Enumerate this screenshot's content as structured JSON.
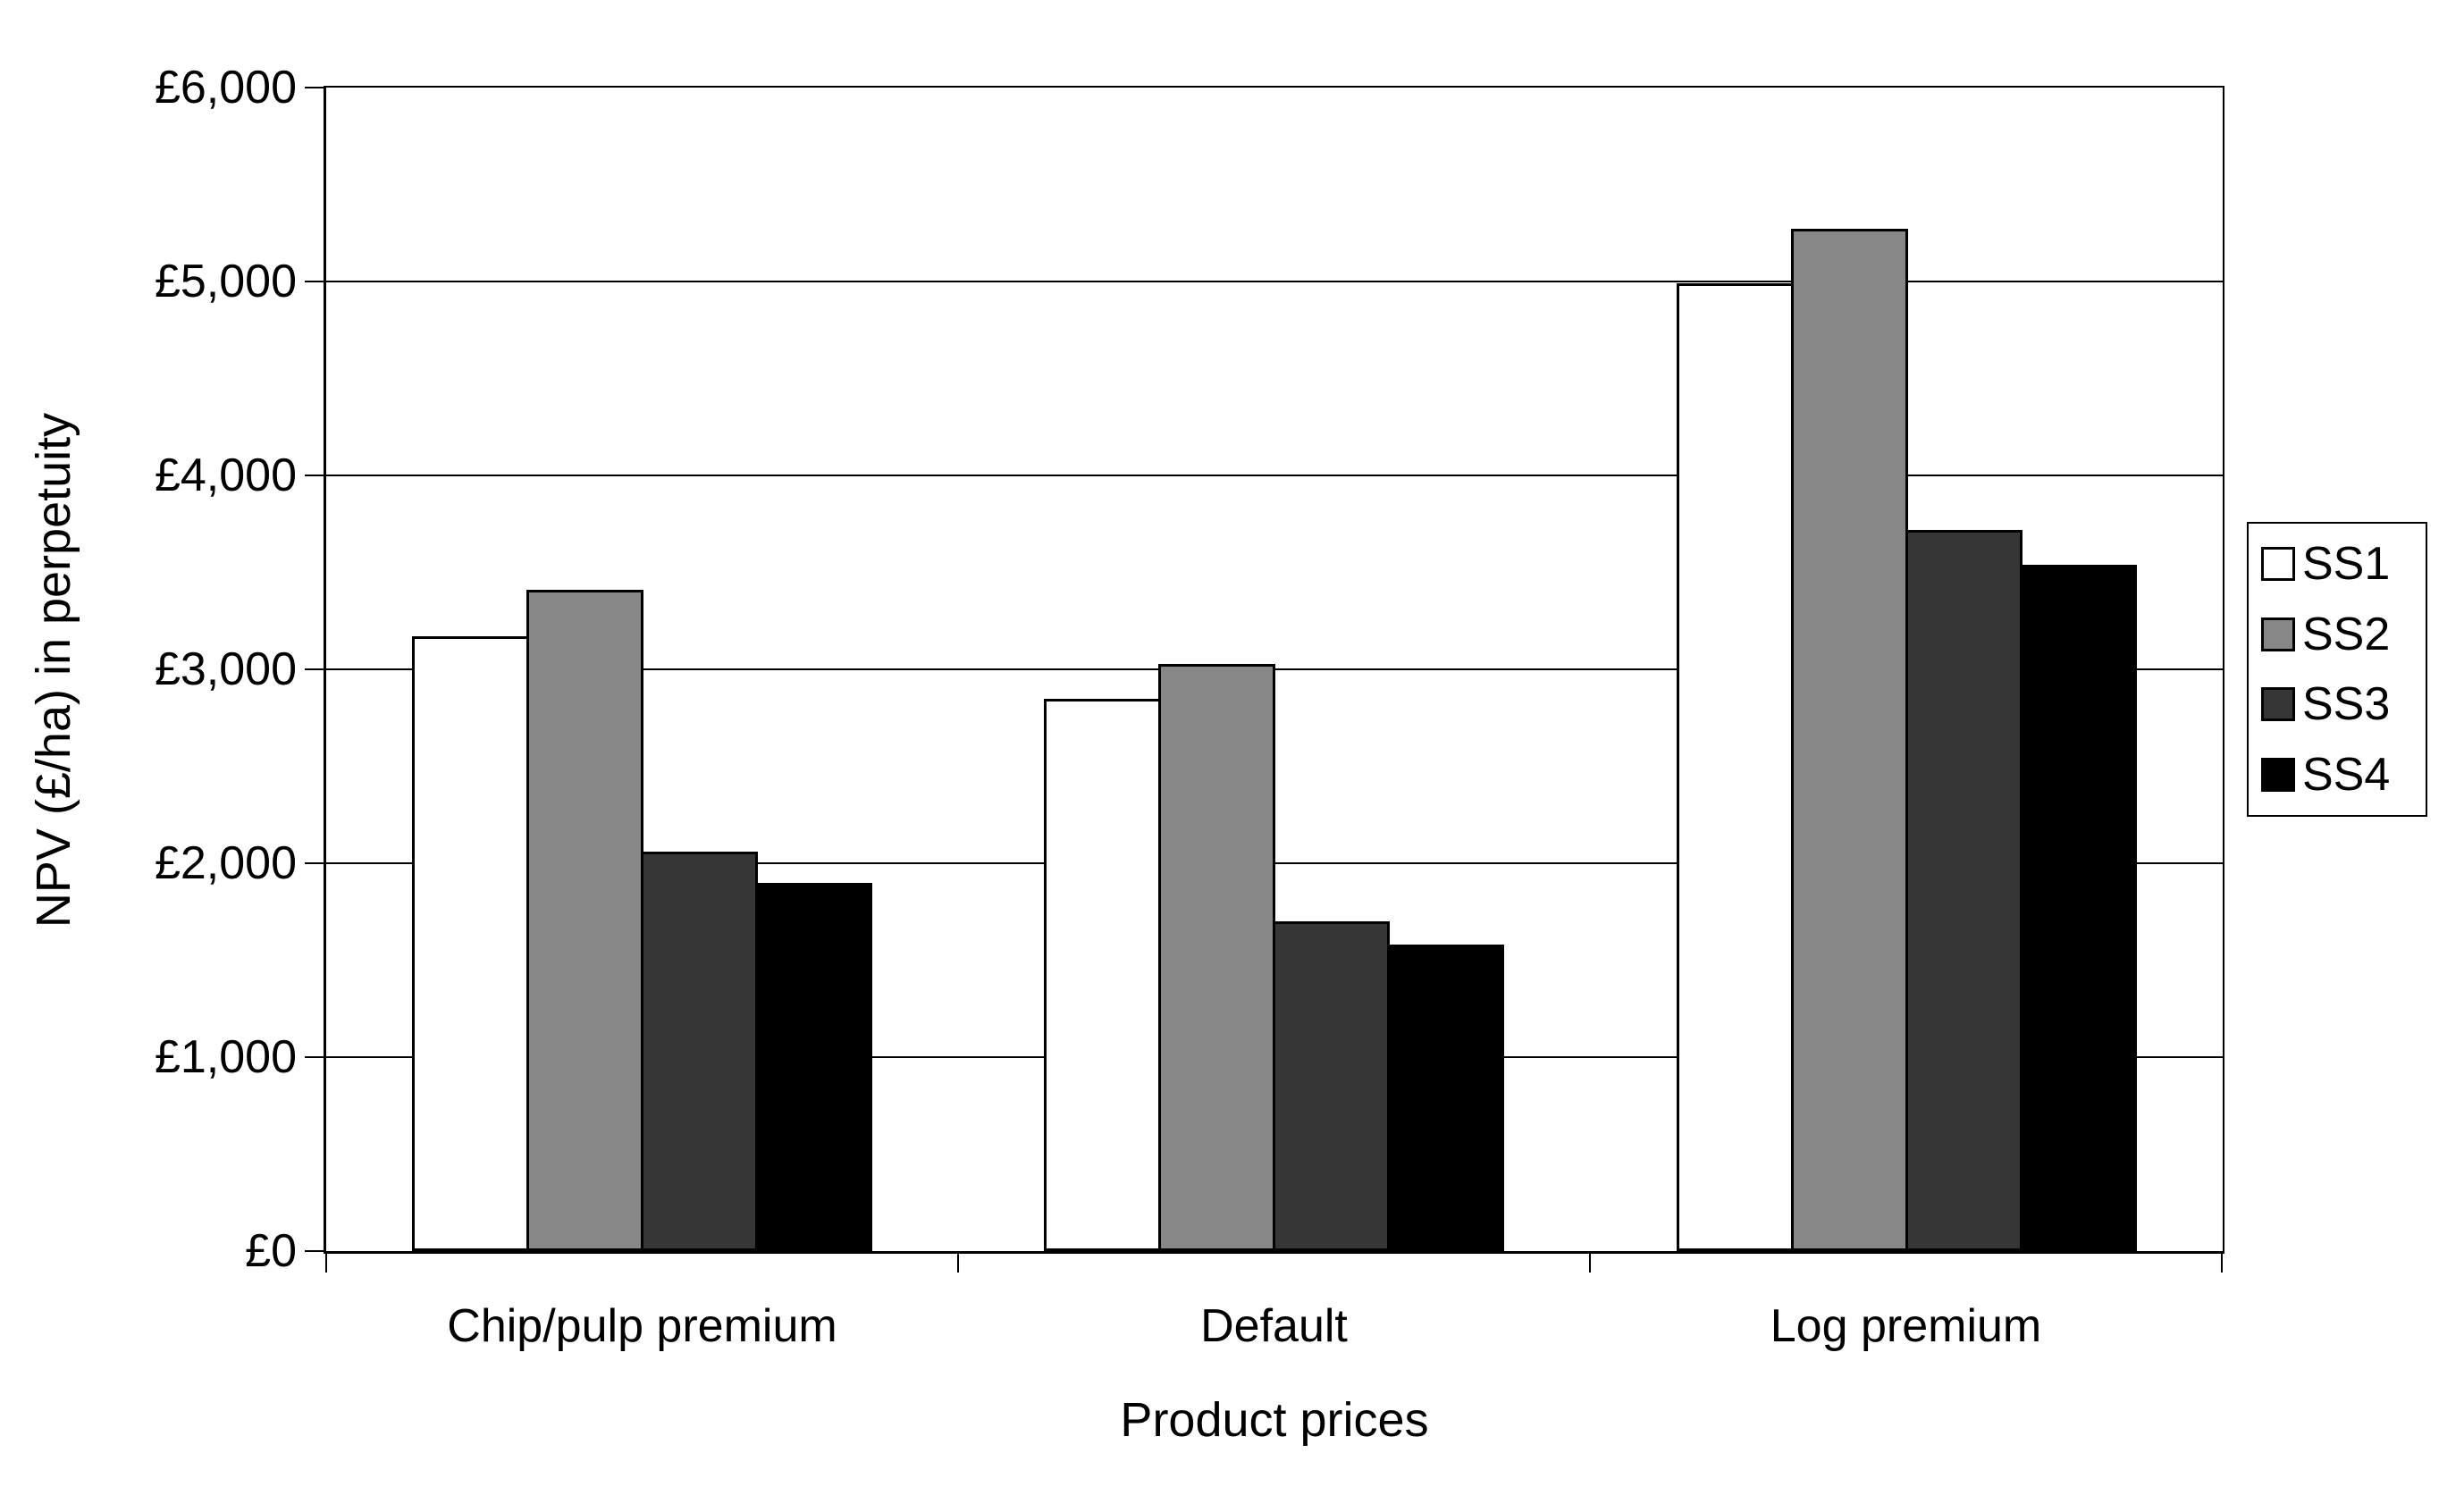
{
  "chart_data": {
    "type": "bar",
    "title": "",
    "xlabel": "Product prices",
    "ylabel": "NPV (£/ha) in perpetuity",
    "categories": [
      "Chip/pulp premium",
      "Default",
      "Log premium"
    ],
    "series": [
      {
        "name": "SS1",
        "color": "#FFFFFF",
        "values": [
          3170,
          2850,
          4990
        ]
      },
      {
        "name": "SS2",
        "color": "#878787",
        "values": [
          3410,
          3030,
          5270
        ]
      },
      {
        "name": "SS3",
        "color": "#363636",
        "values": [
          2060,
          1700,
          3720
        ]
      },
      {
        "name": "SS4",
        "color": "#000000",
        "values": [
          1900,
          1580,
          3540
        ]
      }
    ],
    "ylim": [
      0,
      6000
    ],
    "y_tick_step": 1000,
    "y_tick_labels": [
      "£0",
      "£1,000",
      "£2,000",
      "£3,000",
      "£4,000",
      "£5,000",
      "£6,000"
    ],
    "grid": true,
    "legend_position": "right",
    "bar_border_color": "#000000",
    "currency": "£"
  }
}
